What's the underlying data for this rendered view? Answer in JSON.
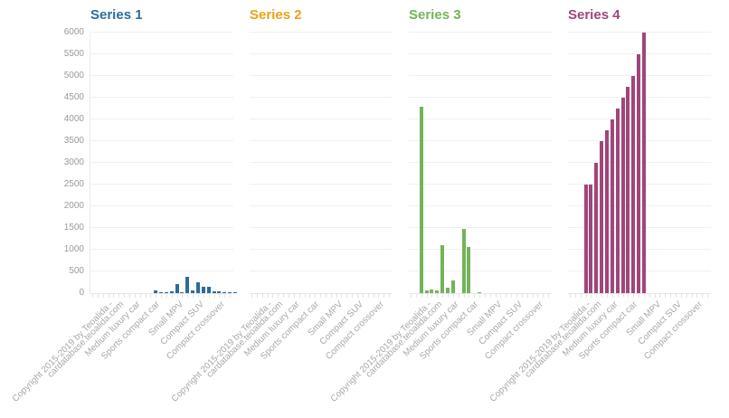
{
  "chart_data": [
    {
      "type": "bar",
      "title": "Series 1",
      "color": "#2e6b99",
      "ylim": [
        0,
        6000
      ],
      "yticks": [
        0,
        500,
        1000,
        1500,
        2000,
        2500,
        3000,
        3500,
        4000,
        4500,
        5000,
        5500,
        6000
      ],
      "bar_slot_start": 12,
      "values": [
        60,
        20,
        10,
        50,
        200,
        10,
        370,
        60,
        240,
        140,
        150,
        40,
        50,
        30,
        20,
        10
      ],
      "xlabels": [
        "Copyright 2015-2019 by Teoalida - cardatabase.teoalida.com",
        "Medium luxury car",
        "Sports compact car",
        "Small MPV",
        "Compact SUV",
        "Compact crossover"
      ]
    },
    {
      "type": "bar",
      "title": "Series 2",
      "color": "#e8a317",
      "ylim": [
        0,
        6000
      ],
      "bar_slot_start": 0,
      "values": [],
      "xlabels": [
        "Copyright 2015-2019 by Teoalida - cardatabase.teoalida.com",
        "Medium luxury car",
        "Sports compact car",
        "Small MPV",
        "Compact SUV",
        "Compact crossover"
      ]
    },
    {
      "type": "bar",
      "title": "Series 3",
      "color": "#74b35a",
      "ylim": [
        0,
        6000
      ],
      "bar_slot_start": 2,
      "values": [
        4300,
        60,
        80,
        60,
        1100,
        120,
        300,
        0,
        1480,
        1060,
        0,
        20
      ],
      "xlabels": [
        "Copyright 2015-2019 by Teoalida - cardatabase.teoalida.com",
        "Medium luxury car",
        "Sports compact car",
        "Small MPV",
        "Compact SUV",
        "Compact crossover"
      ]
    },
    {
      "type": "bar",
      "title": "Series 4",
      "color": "#a1457a",
      "ylim": [
        0,
        6000
      ],
      "bar_slot_start": 3,
      "values": [
        2500,
        2500,
        3000,
        3500,
        3750,
        4000,
        4250,
        4500,
        4750,
        5000,
        5500,
        6000
      ],
      "xlabels": [
        "Copyright 2015-2019 by Teoalida - cardatabase.teoalida.com",
        "Medium luxury car",
        "Sports compact car",
        "Small MPV",
        "Compact SUV",
        "Compact crossover"
      ]
    }
  ],
  "titles": [
    "Series 1",
    "Series 2",
    "Series 3",
    "Series 4"
  ],
  "yaxis": {
    "ticks": [
      "6000",
      "5500",
      "5000",
      "4500",
      "4000",
      "3500",
      "3000",
      "2500",
      "2000",
      "1500",
      "1000",
      "500",
      "0"
    ]
  },
  "xlabels": {
    "copyright_line1": "Copyright 2015-2019 by Teoalida -",
    "copyright_line2": "cardatabase.teoalida.com",
    "medium_luxury": "Medium luxury car",
    "sports_compact": "Sports compact car",
    "small_mpv": "Small MPV",
    "compact_suv": "Compact SUV",
    "compact_crossover": "Compact crossover"
  }
}
